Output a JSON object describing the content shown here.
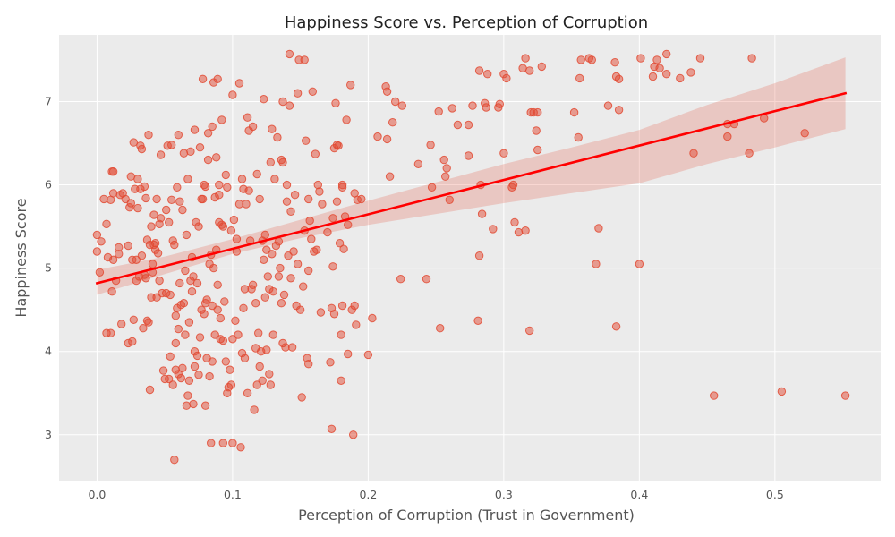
{
  "chart_data": {
    "type": "scatter",
    "title": "Happiness Score vs. Perception of Corruption",
    "xlabel": "Perception of Corruption (Trust in Government)",
    "ylabel": "Happiness Score",
    "xlim": [
      -0.028,
      0.578
    ],
    "ylim": [
      2.45,
      7.8
    ],
    "xticks": [
      "0.0",
      "0.1",
      "0.2",
      "0.3",
      "0.4",
      "0.5"
    ],
    "yticks": [
      "3",
      "4",
      "5",
      "6",
      "7"
    ],
    "grid": true,
    "style": "ggplot",
    "colors": {
      "background": "#EBEBEB",
      "grid": "#FFFFFF",
      "points": "#E24A33",
      "regression": "#FF0000",
      "confidence_band": "#E24A33"
    },
    "point_alpha": 0.5,
    "regression_line": {
      "x": [
        0.0,
        0.552
      ],
      "y": [
        4.82,
        7.1
      ]
    },
    "confidence_band": {
      "x": [
        0.0,
        0.05,
        0.1,
        0.15,
        0.2,
        0.25,
        0.3,
        0.35,
        0.4,
        0.45,
        0.5,
        0.552
      ],
      "lower": [
        4.68,
        4.93,
        5.17,
        5.36,
        5.52,
        5.65,
        5.78,
        5.9,
        6.02,
        6.25,
        6.45,
        6.67
      ],
      "upper": [
        4.98,
        5.14,
        5.35,
        5.58,
        5.81,
        6.03,
        6.25,
        6.45,
        6.66,
        6.96,
        7.22,
        7.53
      ]
    },
    "points": [
      [
        0.0,
        5.4
      ],
      [
        0.0,
        5.2
      ],
      [
        0.002,
        4.95
      ],
      [
        0.003,
        5.32
      ],
      [
        0.005,
        5.83
      ],
      [
        0.007,
        5.53
      ],
      [
        0.008,
        5.13
      ],
      [
        0.007,
        4.22
      ],
      [
        0.01,
        4.22
      ],
      [
        0.01,
        5.82
      ],
      [
        0.011,
        6.16
      ],
      [
        0.012,
        6.16
      ],
      [
        0.011,
        4.72
      ],
      [
        0.012,
        5.1
      ],
      [
        0.012,
        5.9
      ],
      [
        0.014,
        4.85
      ],
      [
        0.016,
        5.25
      ],
      [
        0.016,
        5.17
      ],
      [
        0.017,
        5.88
      ],
      [
        0.018,
        4.33
      ],
      [
        0.019,
        5.9
      ],
      [
        0.021,
        5.83
      ],
      [
        0.023,
        5.27
      ],
      [
        0.023,
        4.1
      ],
      [
        0.024,
        5.73
      ],
      [
        0.025,
        6.1
      ],
      [
        0.025,
        5.78
      ],
      [
        0.026,
        4.12
      ],
      [
        0.026,
        5.1
      ],
      [
        0.027,
        4.38
      ],
      [
        0.027,
        6.51
      ],
      [
        0.028,
        5.95
      ],
      [
        0.029,
        5.1
      ],
      [
        0.029,
        4.85
      ],
      [
        0.03,
        6.07
      ],
      [
        0.03,
        5.72
      ],
      [
        0.031,
        4.9
      ],
      [
        0.032,
        6.47
      ],
      [
        0.032,
        5.95
      ],
      [
        0.033,
        5.15
      ],
      [
        0.033,
        6.43
      ],
      [
        0.034,
        4.28
      ],
      [
        0.035,
        5.98
      ],
      [
        0.035,
        4.92
      ],
      [
        0.036,
        5.84
      ],
      [
        0.036,
        4.88
      ],
      [
        0.037,
        4.37
      ],
      [
        0.037,
        5.34
      ],
      [
        0.038,
        6.6
      ],
      [
        0.038,
        4.35
      ],
      [
        0.039,
        3.54
      ],
      [
        0.039,
        5.28
      ],
      [
        0.04,
        4.65
      ],
      [
        0.04,
        5.5
      ],
      [
        0.041,
        4.95
      ],
      [
        0.041,
        5.05
      ],
      [
        0.042,
        5.28
      ],
      [
        0.042,
        5.64
      ],
      [
        0.043,
        5.3
      ],
      [
        0.043,
        5.22
      ],
      [
        0.044,
        5.83
      ],
      [
        0.044,
        4.65
      ],
      [
        0.045,
        5.18
      ],
      [
        0.046,
        4.85
      ],
      [
        0.046,
        5.53
      ],
      [
        0.047,
        6.36
      ],
      [
        0.047,
        5.6
      ],
      [
        0.048,
        4.7
      ],
      [
        0.049,
        3.77
      ],
      [
        0.05,
        3.67
      ],
      [
        0.051,
        5.7
      ],
      [
        0.051,
        4.7
      ],
      [
        0.052,
        6.47
      ],
      [
        0.053,
        3.67
      ],
      [
        0.053,
        5.55
      ],
      [
        0.054,
        3.94
      ],
      [
        0.054,
        4.68
      ],
      [
        0.055,
        6.48
      ],
      [
        0.055,
        5.82
      ],
      [
        0.056,
        5.33
      ],
      [
        0.056,
        3.6
      ],
      [
        0.057,
        2.7
      ],
      [
        0.057,
        5.28
      ],
      [
        0.058,
        3.78
      ],
      [
        0.058,
        4.43
      ],
      [
        0.058,
        4.1
      ],
      [
        0.059,
        5.97
      ],
      [
        0.059,
        4.52
      ],
      [
        0.06,
        6.6
      ],
      [
        0.06,
        4.27
      ],
      [
        0.06,
        3.73
      ],
      [
        0.061,
        4.82
      ],
      [
        0.061,
        5.8
      ],
      [
        0.062,
        3.68
      ],
      [
        0.062,
        4.56
      ],
      [
        0.063,
        3.8
      ],
      [
        0.063,
        5.7
      ],
      [
        0.064,
        6.38
      ],
      [
        0.064,
        4.58
      ],
      [
        0.065,
        4.2
      ],
      [
        0.065,
        4.97
      ],
      [
        0.066,
        5.4
      ],
      [
        0.066,
        3.35
      ],
      [
        0.067,
        6.07
      ],
      [
        0.067,
        3.47
      ],
      [
        0.068,
        4.35
      ],
      [
        0.068,
        3.65
      ],
      [
        0.069,
        6.4
      ],
      [
        0.069,
        4.85
      ],
      [
        0.07,
        5.13
      ],
      [
        0.07,
        4.72
      ],
      [
        0.071,
        3.37
      ],
      [
        0.071,
        4.9
      ],
      [
        0.072,
        3.82
      ],
      [
        0.072,
        4.0
      ],
      [
        0.072,
        6.66
      ],
      [
        0.073,
        5.55
      ],
      [
        0.074,
        4.82
      ],
      [
        0.074,
        3.95
      ],
      [
        0.075,
        5.5
      ],
      [
        0.075,
        3.72
      ],
      [
        0.076,
        4.17
      ],
      [
        0.076,
        6.45
      ],
      [
        0.077,
        5.83
      ],
      [
        0.077,
        4.5
      ],
      [
        0.078,
        7.27
      ],
      [
        0.078,
        5.83
      ],
      [
        0.079,
        4.45
      ],
      [
        0.079,
        6.0
      ],
      [
        0.08,
        3.35
      ],
      [
        0.08,
        5.98
      ],
      [
        0.08,
        4.58
      ],
      [
        0.081,
        3.92
      ],
      [
        0.081,
        4.62
      ],
      [
        0.082,
        6.62
      ],
      [
        0.082,
        6.3
      ],
      [
        0.083,
        5.05
      ],
      [
        0.083,
        3.7
      ],
      [
        0.084,
        2.9
      ],
      [
        0.084,
        5.16
      ],
      [
        0.085,
        6.7
      ],
      [
        0.085,
        4.55
      ],
      [
        0.085,
        3.88
      ],
      [
        0.086,
        7.23
      ],
      [
        0.086,
        5.0
      ],
      [
        0.087,
        5.85
      ],
      [
        0.087,
        4.2
      ],
      [
        0.088,
        6.33
      ],
      [
        0.088,
        5.22
      ],
      [
        0.089,
        7.27
      ],
      [
        0.089,
        4.5
      ],
      [
        0.089,
        4.8
      ],
      [
        0.09,
        5.55
      ],
      [
        0.09,
        5.88
      ],
      [
        0.09,
        6.0
      ],
      [
        0.091,
        4.4
      ],
      [
        0.091,
        4.15
      ],
      [
        0.092,
        6.78
      ],
      [
        0.092,
        5.52
      ],
      [
        0.093,
        4.13
      ],
      [
        0.093,
        5.5
      ],
      [
        0.093,
        2.9
      ],
      [
        0.094,
        4.6
      ],
      [
        0.095,
        6.12
      ],
      [
        0.095,
        3.88
      ],
      [
        0.096,
        3.5
      ],
      [
        0.096,
        5.97
      ],
      [
        0.097,
        3.57
      ],
      [
        0.098,
        3.78
      ],
      [
        0.099,
        5.45
      ],
      [
        0.099,
        3.6
      ],
      [
        0.1,
        2.9
      ],
      [
        0.1,
        7.08
      ],
      [
        0.1,
        4.15
      ],
      [
        0.101,
        5.58
      ],
      [
        0.102,
        4.37
      ],
      [
        0.103,
        5.35
      ],
      [
        0.103,
        5.2
      ],
      [
        0.104,
        4.2
      ],
      [
        0.105,
        7.22
      ],
      [
        0.105,
        5.77
      ],
      [
        0.106,
        2.85
      ],
      [
        0.107,
        3.98
      ],
      [
        0.107,
        6.07
      ],
      [
        0.108,
        5.95
      ],
      [
        0.108,
        4.52
      ],
      [
        0.109,
        3.92
      ],
      [
        0.109,
        4.75
      ],
      [
        0.11,
        5.77
      ],
      [
        0.111,
        6.81
      ],
      [
        0.111,
        3.5
      ],
      [
        0.112,
        6.65
      ],
      [
        0.112,
        5.93
      ],
      [
        0.113,
        5.33
      ],
      [
        0.114,
        4.75
      ],
      [
        0.115,
        6.7
      ],
      [
        0.115,
        4.8
      ],
      [
        0.116,
        3.3
      ],
      [
        0.117,
        4.58
      ],
      [
        0.117,
        4.04
      ],
      [
        0.118,
        6.13
      ],
      [
        0.118,
        3.6
      ],
      [
        0.119,
        4.22
      ],
      [
        0.12,
        5.83
      ],
      [
        0.12,
        3.82
      ],
      [
        0.121,
        4.0
      ],
      [
        0.122,
        3.65
      ],
      [
        0.122,
        5.33
      ],
      [
        0.123,
        5.1
      ],
      [
        0.123,
        7.03
      ],
      [
        0.124,
        5.4
      ],
      [
        0.124,
        4.65
      ],
      [
        0.125,
        4.02
      ],
      [
        0.125,
        5.22
      ],
      [
        0.126,
        4.9
      ],
      [
        0.127,
        4.75
      ],
      [
        0.127,
        3.73
      ],
      [
        0.128,
        6.27
      ],
      [
        0.128,
        3.6
      ],
      [
        0.129,
        5.17
      ],
      [
        0.129,
        6.67
      ],
      [
        0.13,
        4.72
      ],
      [
        0.13,
        4.2
      ],
      [
        0.131,
        6.07
      ],
      [
        0.132,
        5.27
      ],
      [
        0.133,
        6.57
      ],
      [
        0.134,
        4.9
      ],
      [
        0.134,
        5.32
      ],
      [
        0.135,
        5.0
      ],
      [
        0.136,
        6.3
      ],
      [
        0.136,
        4.58
      ],
      [
        0.137,
        4.1
      ],
      [
        0.137,
        6.27
      ],
      [
        0.137,
        7.0
      ],
      [
        0.138,
        4.68
      ],
      [
        0.139,
        4.05
      ],
      [
        0.14,
        5.8
      ],
      [
        0.14,
        6.0
      ],
      [
        0.141,
        5.15
      ],
      [
        0.142,
        6.95
      ],
      [
        0.142,
        7.57
      ],
      [
        0.143,
        5.68
      ],
      [
        0.143,
        4.88
      ],
      [
        0.144,
        4.05
      ],
      [
        0.145,
        5.2
      ],
      [
        0.146,
        5.88
      ],
      [
        0.147,
        4.55
      ],
      [
        0.148,
        5.05
      ],
      [
        0.148,
        7.1
      ],
      [
        0.149,
        7.5
      ],
      [
        0.15,
        4.5
      ],
      [
        0.151,
        3.45
      ],
      [
        0.152,
        4.78
      ],
      [
        0.153,
        5.45
      ],
      [
        0.153,
        7.5
      ],
      [
        0.154,
        6.53
      ],
      [
        0.155,
        3.92
      ],
      [
        0.156,
        5.83
      ],
      [
        0.156,
        4.97
      ],
      [
        0.156,
        3.85
      ],
      [
        0.157,
        5.57
      ],
      [
        0.158,
        5.35
      ],
      [
        0.159,
        7.12
      ],
      [
        0.16,
        5.2
      ],
      [
        0.161,
        6.37
      ],
      [
        0.162,
        5.22
      ],
      [
        0.163,
        6.0
      ],
      [
        0.164,
        5.92
      ],
      [
        0.165,
        4.47
      ],
      [
        0.166,
        5.77
      ],
      [
        0.17,
        5.43
      ],
      [
        0.172,
        3.87
      ],
      [
        0.173,
        4.52
      ],
      [
        0.173,
        3.07
      ],
      [
        0.174,
        5.6
      ],
      [
        0.174,
        5.02
      ],
      [
        0.175,
        4.45
      ],
      [
        0.175,
        6.44
      ],
      [
        0.176,
        6.98
      ],
      [
        0.177,
        5.8
      ],
      [
        0.177,
        6.48
      ],
      [
        0.178,
        6.47
      ],
      [
        0.179,
        5.3
      ],
      [
        0.18,
        3.65
      ],
      [
        0.18,
        4.2
      ],
      [
        0.181,
        6.0
      ],
      [
        0.181,
        5.97
      ],
      [
        0.181,
        4.55
      ],
      [
        0.182,
        5.23
      ],
      [
        0.183,
        5.62
      ],
      [
        0.184,
        6.78
      ],
      [
        0.185,
        3.97
      ],
      [
        0.185,
        5.52
      ],
      [
        0.187,
        7.2
      ],
      [
        0.188,
        4.5
      ],
      [
        0.189,
        3.0
      ],
      [
        0.19,
        4.55
      ],
      [
        0.19,
        5.9
      ],
      [
        0.191,
        4.32
      ],
      [
        0.192,
        5.82
      ],
      [
        0.195,
        5.83
      ],
      [
        0.2,
        3.96
      ],
      [
        0.203,
        4.4
      ],
      [
        0.207,
        6.58
      ],
      [
        0.213,
        7.18
      ],
      [
        0.214,
        6.55
      ],
      [
        0.214,
        7.12
      ],
      [
        0.216,
        6.1
      ],
      [
        0.218,
        6.75
      ],
      [
        0.22,
        7.0
      ],
      [
        0.224,
        4.87
      ],
      [
        0.225,
        6.95
      ],
      [
        0.237,
        6.25
      ],
      [
        0.243,
        4.87
      ],
      [
        0.246,
        6.48
      ],
      [
        0.247,
        5.97
      ],
      [
        0.252,
        6.88
      ],
      [
        0.253,
        4.28
      ],
      [
        0.256,
        6.3
      ],
      [
        0.257,
        6.1
      ],
      [
        0.258,
        6.2
      ],
      [
        0.26,
        5.82
      ],
      [
        0.262,
        6.92
      ],
      [
        0.266,
        6.72
      ],
      [
        0.274,
        6.35
      ],
      [
        0.274,
        6.72
      ],
      [
        0.277,
        6.95
      ],
      [
        0.281,
        4.37
      ],
      [
        0.282,
        7.37
      ],
      [
        0.282,
        5.15
      ],
      [
        0.283,
        6.0
      ],
      [
        0.284,
        5.65
      ],
      [
        0.286,
        6.98
      ],
      [
        0.287,
        6.93
      ],
      [
        0.288,
        7.33
      ],
      [
        0.292,
        5.47
      ],
      [
        0.296,
        6.93
      ],
      [
        0.297,
        6.97
      ],
      [
        0.3,
        6.38
      ],
      [
        0.3,
        7.33
      ],
      [
        0.302,
        7.28
      ],
      [
        0.306,
        5.97
      ],
      [
        0.307,
        6.0
      ],
      [
        0.308,
        5.55
      ],
      [
        0.311,
        5.43
      ],
      [
        0.314,
        7.4
      ],
      [
        0.316,
        5.45
      ],
      [
        0.316,
        7.52
      ],
      [
        0.319,
        7.37
      ],
      [
        0.319,
        4.25
      ],
      [
        0.32,
        6.87
      ],
      [
        0.322,
        6.87
      ],
      [
        0.324,
        6.65
      ],
      [
        0.325,
        6.42
      ],
      [
        0.325,
        6.87
      ],
      [
        0.328,
        7.42
      ],
      [
        0.352,
        6.87
      ],
      [
        0.355,
        6.57
      ],
      [
        0.356,
        7.28
      ],
      [
        0.357,
        7.5
      ],
      [
        0.363,
        7.52
      ],
      [
        0.365,
        7.5
      ],
      [
        0.368,
        5.05
      ],
      [
        0.37,
        5.48
      ],
      [
        0.377,
        6.95
      ],
      [
        0.382,
        7.47
      ],
      [
        0.383,
        7.3
      ],
      [
        0.383,
        4.3
      ],
      [
        0.385,
        7.27
      ],
      [
        0.385,
        6.9
      ],
      [
        0.4,
        5.05
      ],
      [
        0.401,
        7.52
      ],
      [
        0.41,
        7.3
      ],
      [
        0.411,
        7.42
      ],
      [
        0.413,
        7.5
      ],
      [
        0.415,
        7.4
      ],
      [
        0.42,
        7.57
      ],
      [
        0.42,
        7.33
      ],
      [
        0.43,
        7.28
      ],
      [
        0.438,
        7.35
      ],
      [
        0.44,
        6.38
      ],
      [
        0.445,
        7.52
      ],
      [
        0.455,
        3.47
      ],
      [
        0.465,
        6.58
      ],
      [
        0.465,
        6.73
      ],
      [
        0.47,
        6.73
      ],
      [
        0.481,
        6.38
      ],
      [
        0.483,
        7.52
      ],
      [
        0.492,
        6.8
      ],
      [
        0.505,
        3.52
      ],
      [
        0.522,
        6.62
      ],
      [
        0.552,
        3.47
      ]
    ]
  }
}
